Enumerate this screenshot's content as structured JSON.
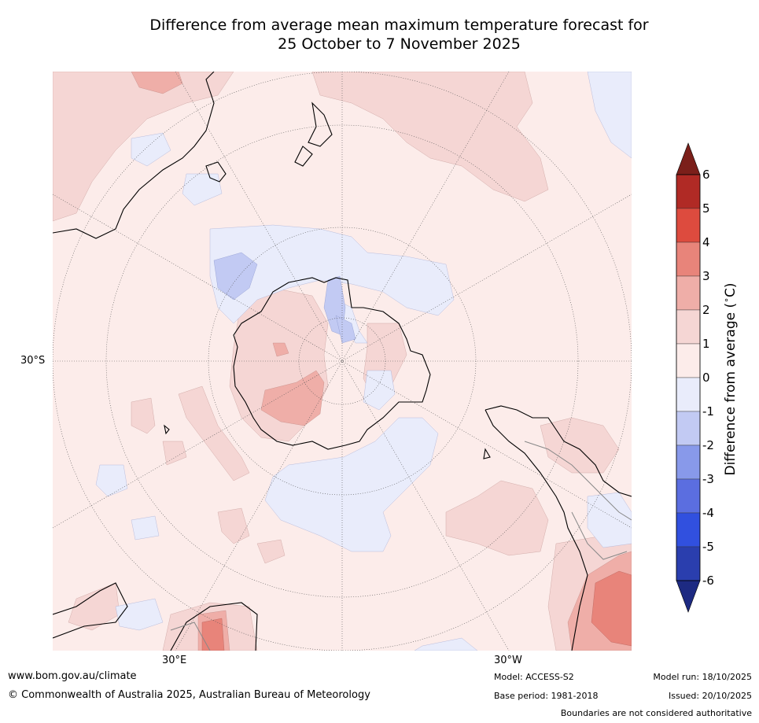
{
  "title": {
    "line1": "Difference from average mean maximum temperature forecast for",
    "line2": "25 October to 7 November 2025"
  },
  "map": {
    "projection": "south polar stereographic",
    "lat_labels": [
      "30°S"
    ],
    "lon_labels": [
      "30°E",
      "30°W"
    ]
  },
  "colorbar": {
    "label": "Difference from average ($^\\circ$C)",
    "label_display": "Difference from average (",
    "label_unit": "C)",
    "ticks": [
      "6",
      "5",
      "4",
      "3",
      "2",
      "1",
      "0",
      "-1",
      "-2",
      "-3",
      "-4",
      "-5",
      "-6"
    ],
    "colors": [
      "#7b1f1a",
      "#b02a25",
      "#dd4b3e",
      "#e8847a",
      "#efaea8",
      "#f5d6d4",
      "#fcecea",
      "#e9ecfb",
      "#c2caf3",
      "#8899ea",
      "#5b6ee0",
      "#3150df",
      "#2a3eae",
      "#1d2a82"
    ]
  },
  "footer": {
    "url": "www.bom.gov.au/climate",
    "copyright": "© Commonwealth of Australia 2025, Australian Bureau of Meteorology",
    "model": "Model: ACCESS-S2",
    "base_period": "Base period: 1981-2018",
    "model_run": "Model run: 18/10/2025",
    "issued": "Issued: 20/10/2025",
    "disclaimer": "Boundaries are not considered authoritative"
  }
}
